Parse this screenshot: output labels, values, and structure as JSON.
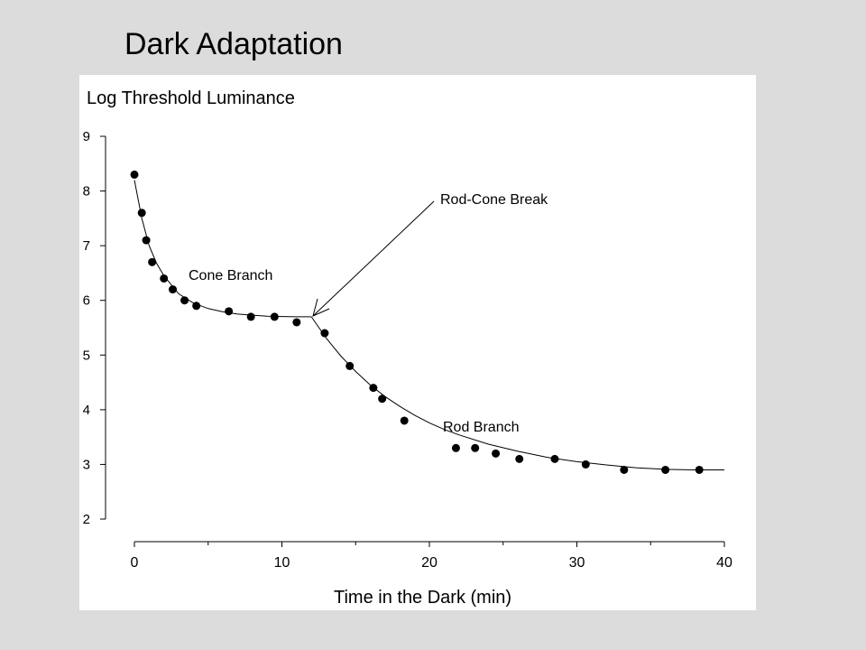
{
  "slide": {
    "title": "Dark Adaptation"
  },
  "chart_data": {
    "type": "scatter",
    "title": "",
    "ylabel": "Log Threshold Luminance",
    "xlabel": "Time in the Dark (min)",
    "xlim": [
      0,
      40
    ],
    "ylim": [
      2,
      9
    ],
    "xticks": [
      0,
      10,
      20,
      30,
      40
    ],
    "yticks": [
      2,
      3,
      4,
      5,
      6,
      7,
      8,
      9
    ],
    "grid": false,
    "legend": "none",
    "series": [
      {
        "points": [
          [
            0,
            8.3
          ],
          [
            0.5,
            7.6
          ],
          [
            0.8,
            7.1
          ],
          [
            1.2,
            6.7
          ],
          [
            2.0,
            6.4
          ],
          [
            2.6,
            6.2
          ],
          [
            3.4,
            6.0
          ],
          [
            4.2,
            5.9
          ],
          [
            6.4,
            5.8
          ],
          [
            7.9,
            5.7
          ],
          [
            9.5,
            5.7
          ],
          [
            11.0,
            5.6
          ],
          [
            12.9,
            5.4
          ],
          [
            14.6,
            4.8
          ],
          [
            16.2,
            4.4
          ],
          [
            16.8,
            4.2
          ],
          [
            18.3,
            3.8
          ],
          [
            21.8,
            3.3
          ],
          [
            23.1,
            3.3
          ],
          [
            24.5,
            3.2
          ],
          [
            26.1,
            3.1
          ],
          [
            28.5,
            3.1
          ],
          [
            30.6,
            3.0
          ],
          [
            33.2,
            2.9
          ],
          [
            36.0,
            2.9
          ],
          [
            38.3,
            2.9
          ]
        ]
      }
    ],
    "fitted_curve": {
      "cone_branch": [
        [
          0,
          8.2
        ],
        [
          0.5,
          7.5
        ],
        [
          1,
          7.0
        ],
        [
          1.5,
          6.68
        ],
        [
          2,
          6.45
        ],
        [
          3,
          6.12
        ],
        [
          4,
          5.95
        ],
        [
          5,
          5.85
        ],
        [
          6,
          5.79
        ],
        [
          7,
          5.75
        ],
        [
          8,
          5.73
        ],
        [
          9,
          5.71
        ],
        [
          10,
          5.705
        ],
        [
          11,
          5.7
        ],
        [
          12,
          5.7
        ]
      ],
      "rod_branch": [
        [
          12,
          5.7
        ],
        [
          13,
          5.31
        ],
        [
          14,
          4.98
        ],
        [
          15,
          4.7
        ],
        [
          16,
          4.45
        ],
        [
          17,
          4.24
        ],
        [
          18,
          4.06
        ],
        [
          19,
          3.9
        ],
        [
          20,
          3.76
        ],
        [
          21,
          3.64
        ],
        [
          22,
          3.54
        ],
        [
          24,
          3.37
        ],
        [
          26,
          3.24
        ],
        [
          28,
          3.13
        ],
        [
          30,
          3.05
        ],
        [
          32,
          2.99
        ],
        [
          34,
          2.94
        ],
        [
          36,
          2.91
        ],
        [
          38,
          2.9
        ],
        [
          40,
          2.9
        ]
      ]
    },
    "annotations": [
      {
        "text": "Rod-Cone Break",
        "x": 12,
        "y": 5.7
      },
      {
        "text": "Cone Branch"
      },
      {
        "text": "Rod Branch"
      }
    ]
  }
}
